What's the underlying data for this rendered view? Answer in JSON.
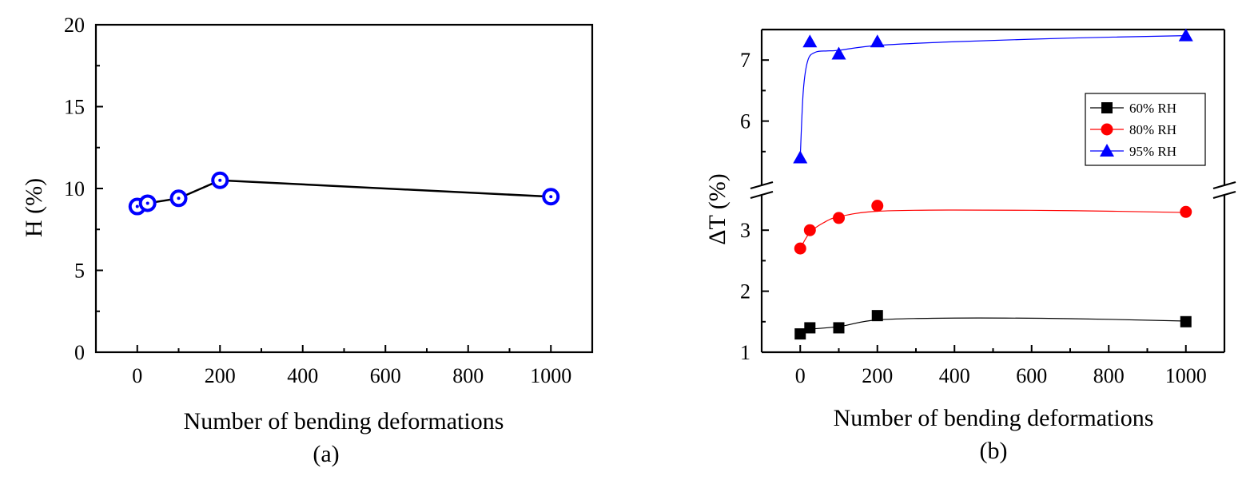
{
  "chart_data": [
    {
      "type": "line",
      "panel_label": "(a)",
      "xlabel": "Number of bending deformations",
      "ylabel": "H (%)",
      "xlim": [
        -100,
        1100
      ],
      "ylim": [
        0,
        20
      ],
      "xticks": [
        "0",
        "200",
        "400",
        "600",
        "800",
        "1000"
      ],
      "yticks": [
        "0",
        "5",
        "10",
        "15",
        "20"
      ],
      "series": [
        {
          "name": "H",
          "color": "#0000ff",
          "line_color": "#000000",
          "marker": "ring",
          "x": [
            0,
            25,
            100,
            200,
            1000
          ],
          "y": [
            8.9,
            9.1,
            9.4,
            10.5,
            9.5
          ]
        }
      ]
    },
    {
      "type": "line",
      "panel_label": "(b)",
      "xlabel": "Number of bending deformations",
      "ylabel": "ΔT (%)",
      "xlim": [
        -100,
        1100
      ],
      "ylim_lower": [
        1,
        3.5
      ],
      "ylim_upper": [
        5,
        7.5
      ],
      "xticks": [
        "0",
        "200",
        "400",
        "600",
        "800",
        "1000"
      ],
      "yticks_lower": [
        "1",
        "2",
        "3"
      ],
      "yticks_upper": [
        "6",
        "7"
      ],
      "legend_position": "upper-right",
      "series": [
        {
          "name": "60% RH",
          "color": "#000000",
          "marker": "square",
          "x": [
            0,
            25,
            100,
            200,
            1000
          ],
          "y": [
            1.3,
            1.4,
            1.4,
            1.6,
            1.5
          ],
          "fit": [
            [
              0,
              1.37
            ],
            [
              100,
              1.42
            ],
            [
              200,
              1.53
            ],
            [
              400,
              1.56
            ],
            [
              700,
              1.55
            ],
            [
              1000,
              1.51
            ]
          ]
        },
        {
          "name": "80% RH",
          "color": "#ff0000",
          "marker": "circle",
          "x": [
            0,
            25,
            100,
            200,
            1000
          ],
          "y": [
            2.7,
            3.0,
            3.2,
            3.4,
            3.3
          ],
          "fit": [
            [
              0,
              2.7
            ],
            [
              25,
              2.96
            ],
            [
              60,
              3.12
            ],
            [
              100,
              3.22
            ],
            [
              200,
              3.31
            ],
            [
              400,
              3.33
            ],
            [
              700,
              3.32
            ],
            [
              1000,
              3.29
            ]
          ]
        },
        {
          "name": "95% RH",
          "color": "#0000ff",
          "marker": "triangle",
          "x": [
            0,
            25,
            100,
            200,
            1000
          ],
          "y": [
            5.4,
            7.3,
            7.1,
            7.3,
            7.4
          ],
          "fit": [
            [
              0,
              5.4
            ],
            [
              8,
              6.5
            ],
            [
              20,
              7.0
            ],
            [
              40,
              7.13
            ],
            [
              70,
              7.15
            ],
            [
              100,
              7.16
            ],
            [
              200,
              7.24
            ],
            [
              400,
              7.3
            ],
            [
              700,
              7.36
            ],
            [
              1000,
              7.4
            ]
          ]
        }
      ]
    }
  ]
}
